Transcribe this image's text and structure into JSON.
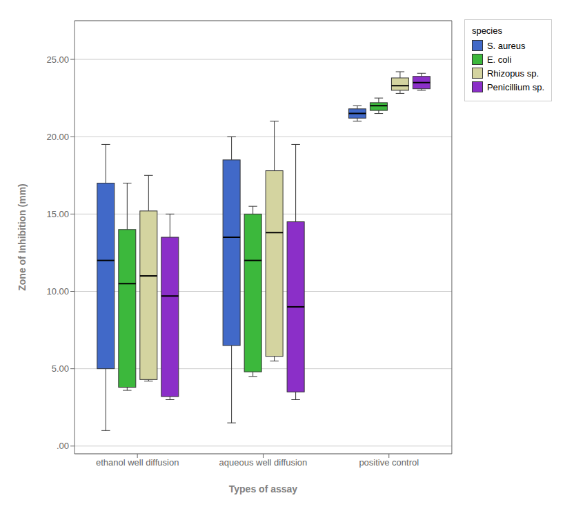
{
  "chart_data": {
    "type": "box",
    "title": "",
    "xlabel": "Types of assay",
    "ylabel": "Zone of Inhibition (mm)",
    "legend_title": "species",
    "categories": [
      "ethanol well diffusion",
      "aqueous well diffusion",
      "positive control"
    ],
    "series": [
      {
        "name": "S. aureus",
        "color": "#4169C8",
        "values": [
          {
            "whislo": 1.0,
            "q1": 5.0,
            "med": 12.0,
            "q3": 17.0,
            "whishi": 19.5
          },
          {
            "whislo": 1.5,
            "q1": 6.5,
            "med": 13.5,
            "q3": 18.5,
            "whishi": 20.0
          },
          {
            "whislo": 21.0,
            "q1": 21.2,
            "med": 21.5,
            "q3": 21.8,
            "whishi": 22.0
          }
        ]
      },
      {
        "name": "E. coli",
        "color": "#3CB83C",
        "values": [
          {
            "whislo": 3.6,
            "q1": 3.8,
            "med": 10.5,
            "q3": 14.0,
            "whishi": 17.0
          },
          {
            "whislo": 4.5,
            "q1": 4.8,
            "med": 12.0,
            "q3": 15.0,
            "whishi": 15.5
          },
          {
            "whislo": 21.5,
            "q1": 21.7,
            "med": 22.0,
            "q3": 22.2,
            "whishi": 22.5
          }
        ]
      },
      {
        "name": "Rhizopus sp.",
        "color": "#D4D4A0",
        "values": [
          {
            "whislo": 4.2,
            "q1": 4.3,
            "med": 11.0,
            "q3": 15.2,
            "whishi": 17.5
          },
          {
            "whislo": 5.5,
            "q1": 5.8,
            "med": 13.8,
            "q3": 17.8,
            "whishi": 21.0
          },
          {
            "whislo": 22.8,
            "q1": 23.0,
            "med": 23.3,
            "q3": 23.8,
            "whishi": 24.2
          }
        ]
      },
      {
        "name": "Penicillium sp.",
        "color": "#8B2FC8",
        "values": [
          {
            "whislo": 3.0,
            "q1": 3.2,
            "med": 9.7,
            "q3": 13.5,
            "whishi": 15.0
          },
          {
            "whislo": 3.0,
            "q1": 3.5,
            "med": 9.0,
            "q3": 14.5,
            "whishi": 19.5
          },
          {
            "whislo": 23.0,
            "q1": 23.1,
            "med": 23.5,
            "q3": 23.9,
            "whishi": 24.1
          }
        ]
      }
    ],
    "ylim": [
      -0.5,
      27.5
    ],
    "yticks": [
      {
        "value": 0.0,
        "label": ".00"
      },
      {
        "value": 5.0,
        "label": "5.00"
      },
      {
        "value": 10.0,
        "label": "10.00"
      },
      {
        "value": 15.0,
        "label": "15.00"
      },
      {
        "value": 20.0,
        "label": "20.00"
      },
      {
        "value": 25.0,
        "label": "25.00"
      }
    ],
    "grid": true,
    "legend": "upper right"
  }
}
